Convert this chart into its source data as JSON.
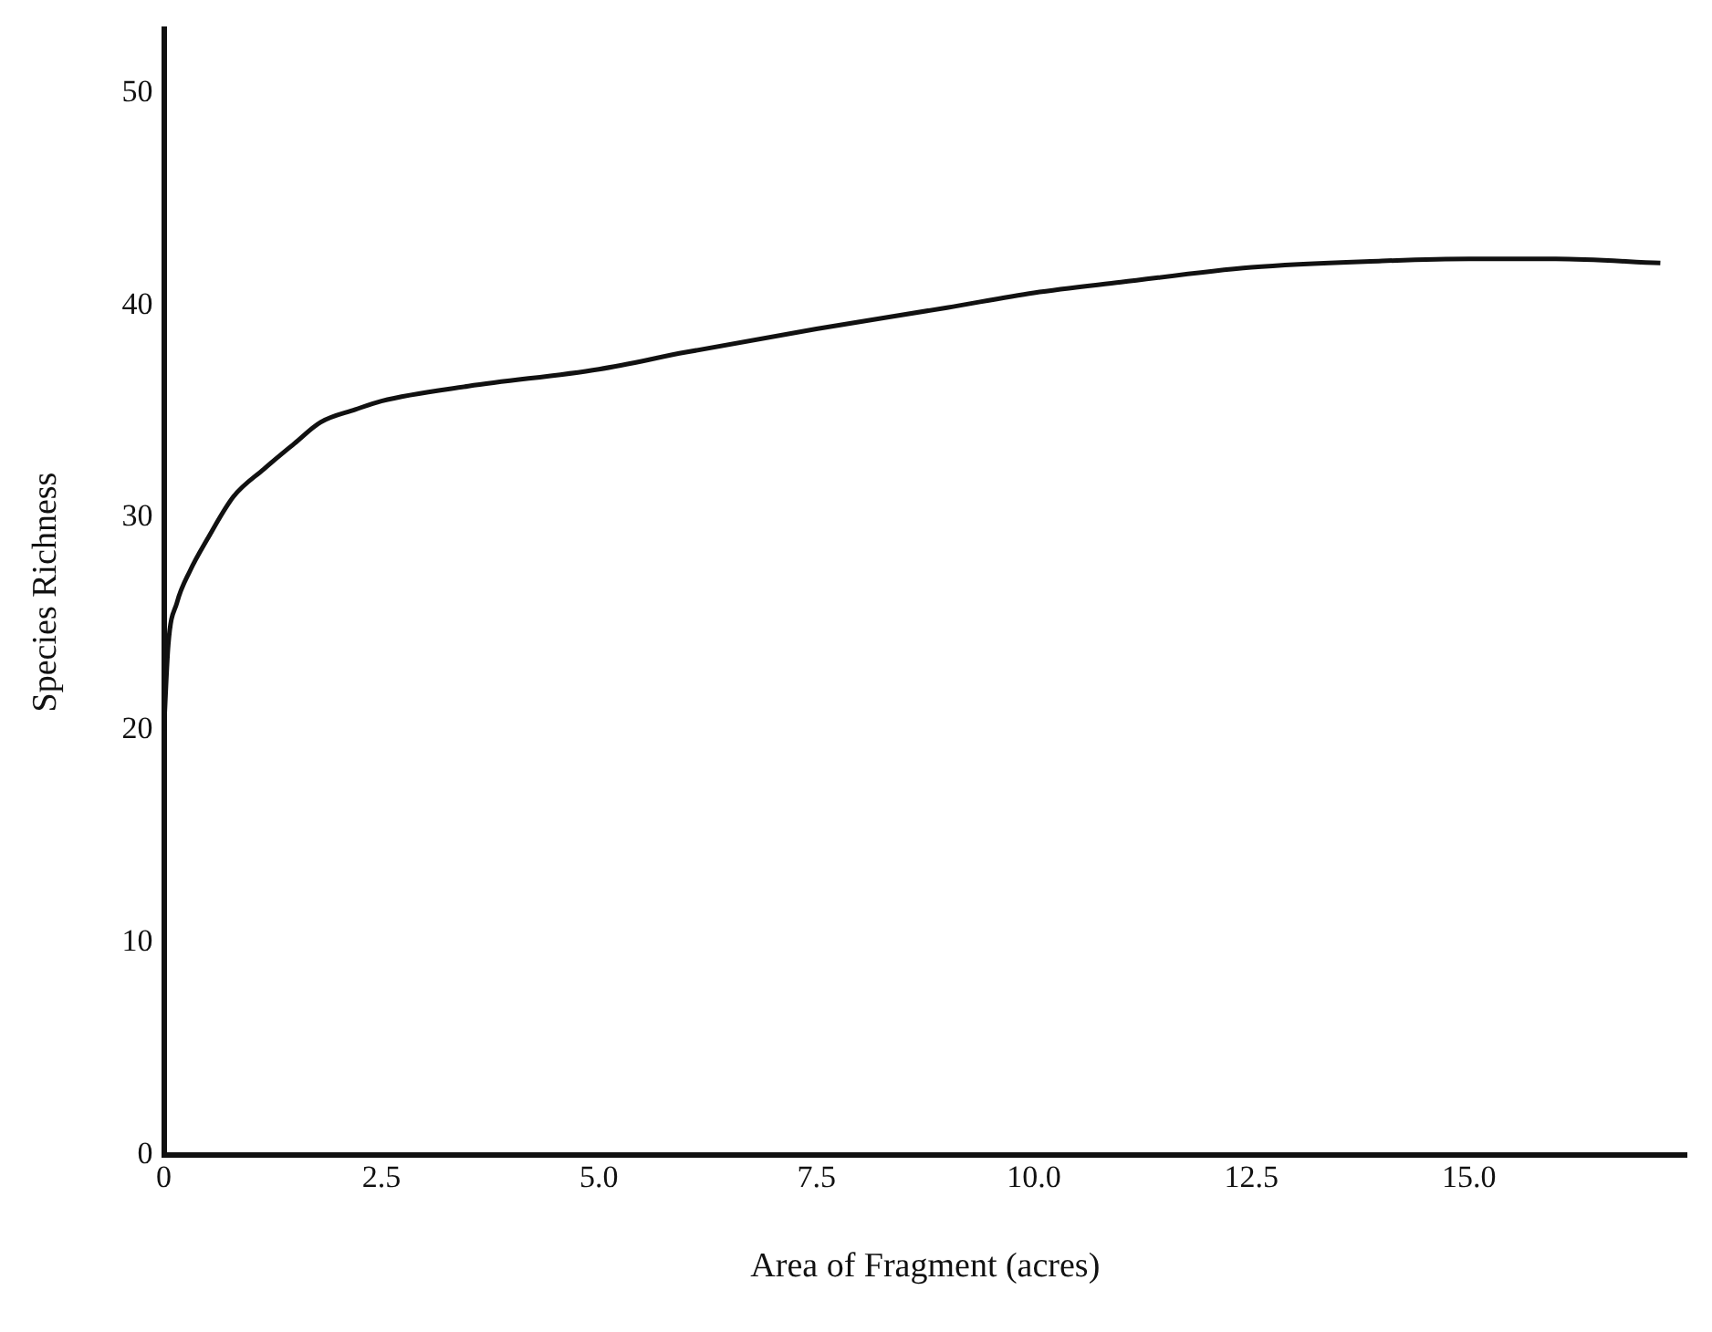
{
  "chart_data": {
    "type": "line",
    "xlabel": "Area of Fragment (acres)",
    "ylabel": "Species Richness",
    "series": [
      {
        "color": "#111111",
        "x": [
          0,
          0.05,
          0.15,
          0.3,
          0.5,
          0.8,
          1.15,
          1.5,
          1.8,
          2.2,
          2.5,
          3.5,
          5.0,
          6.0,
          7.5,
          9.0,
          10.0,
          11.0,
          12.5,
          14.0,
          15.0,
          16.0,
          17.2
        ],
        "values": [
          20,
          24,
          26,
          27.5,
          29,
          31,
          32.3,
          33.5,
          34.5,
          35.1,
          35.5,
          36.2,
          37,
          37.8,
          38.9,
          39.9,
          40.6,
          41.1,
          41.8,
          42.1,
          42.2,
          42.2,
          42
        ]
      }
    ],
    "xlim": [
      0,
      17.5
    ],
    "ylim": [
      0,
      53
    ],
    "xticks": [
      0,
      2.5,
      {
        "value": 5,
        "label": "5.0"
      },
      7.5,
      {
        "value": 10,
        "label": "10.0"
      },
      12.5,
      {
        "value": 15,
        "label": "15.0"
      }
    ],
    "yticks": [
      0,
      10,
      20,
      30,
      40,
      50
    ],
    "grid": false,
    "legend": false,
    "marker": "none",
    "line_style": "solid"
  }
}
